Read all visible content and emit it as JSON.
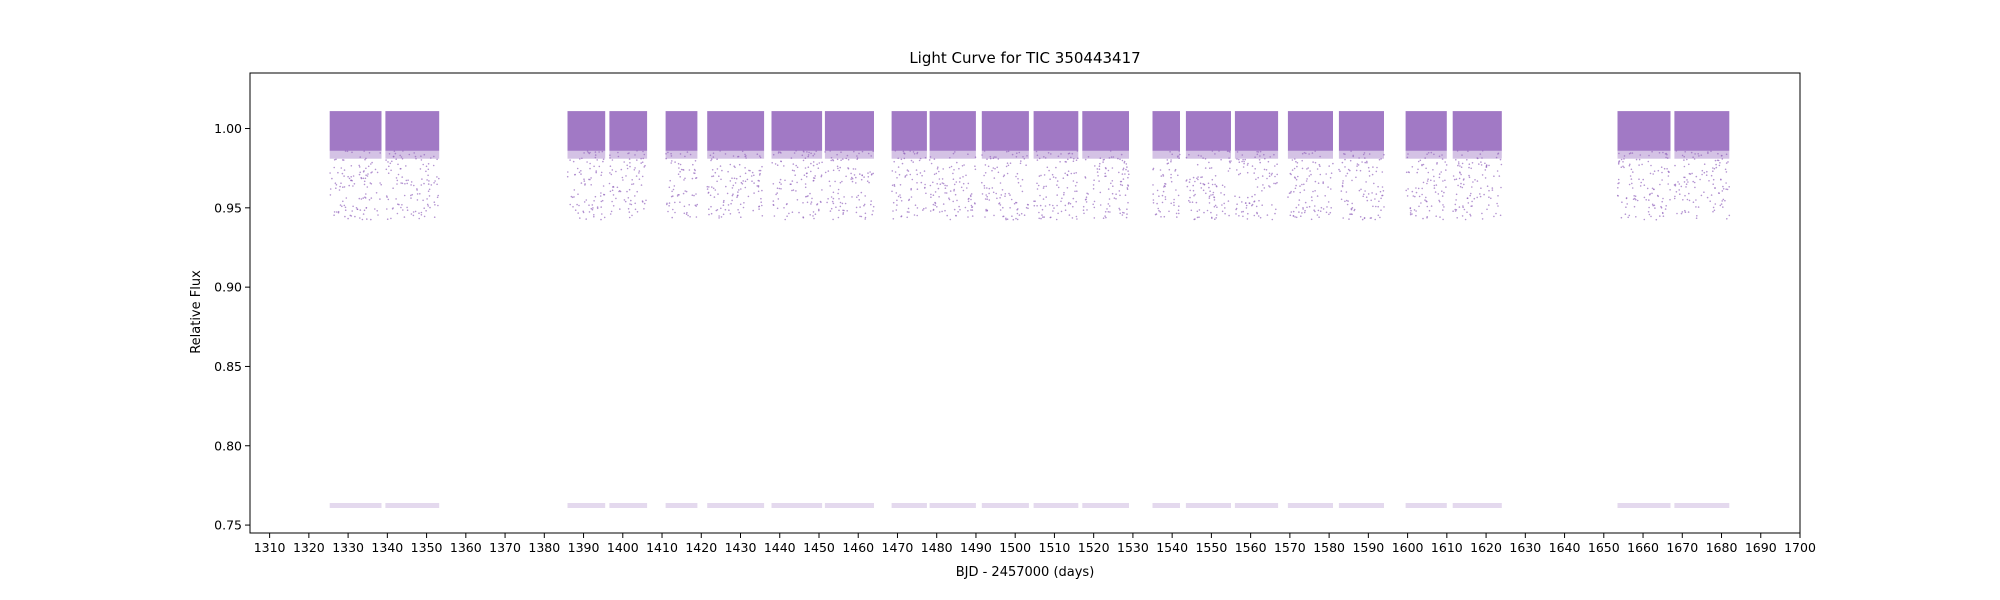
{
  "chart_data": {
    "type": "scatter",
    "title": "Light Curve for TIC 350443417",
    "xlabel": "BJD - 2457000 (days)",
    "ylabel": "Relative Flux",
    "xlim": [
      1305,
      1700
    ],
    "ylim": [
      0.745,
      1.035
    ],
    "grid": false,
    "legend": "none",
    "color": "#9467bd",
    "x_ticks": [
      1310,
      1320,
      1330,
      1340,
      1350,
      1360,
      1370,
      1380,
      1390,
      1400,
      1410,
      1420,
      1430,
      1440,
      1450,
      1460,
      1470,
      1480,
      1490,
      1500,
      1510,
      1520,
      1530,
      1540,
      1550,
      1560,
      1570,
      1580,
      1590,
      1600,
      1610,
      1620,
      1630,
      1640,
      1650,
      1660,
      1670,
      1680,
      1690,
      1700
    ],
    "y_ticks": [
      "0.75",
      "0.80",
      "0.85",
      "0.90",
      "0.95",
      "1.00"
    ],
    "baseline_flux": 1.0,
    "transit_min_flux": 0.762,
    "observed_segments": [
      {
        "start": 1325.3,
        "end": 1338.5
      },
      {
        "start": 1339.5,
        "end": 1353.2
      },
      {
        "start": 1385.9,
        "end": 1395.5
      },
      {
        "start": 1396.6,
        "end": 1406.2
      },
      {
        "start": 1410.9,
        "end": 1419.0
      },
      {
        "start": 1421.5,
        "end": 1436.0
      },
      {
        "start": 1437.9,
        "end": 1450.8
      },
      {
        "start": 1451.5,
        "end": 1464.0
      },
      {
        "start": 1468.5,
        "end": 1477.5
      },
      {
        "start": 1478.2,
        "end": 1490.0
      },
      {
        "start": 1491.5,
        "end": 1503.5
      },
      {
        "start": 1504.7,
        "end": 1516.1
      },
      {
        "start": 1517.1,
        "end": 1529.0
      },
      {
        "start": 1535.0,
        "end": 1542.0
      },
      {
        "start": 1543.5,
        "end": 1555.0
      },
      {
        "start": 1556.0,
        "end": 1567.0
      },
      {
        "start": 1569.5,
        "end": 1581.0
      },
      {
        "start": 1582.5,
        "end": 1594.0
      },
      {
        "start": 1599.5,
        "end": 1610.0
      },
      {
        "start": 1611.5,
        "end": 1624.0
      },
      {
        "start": 1653.5,
        "end": 1667.0
      },
      {
        "start": 1668.0,
        "end": 1682.0
      }
    ]
  }
}
